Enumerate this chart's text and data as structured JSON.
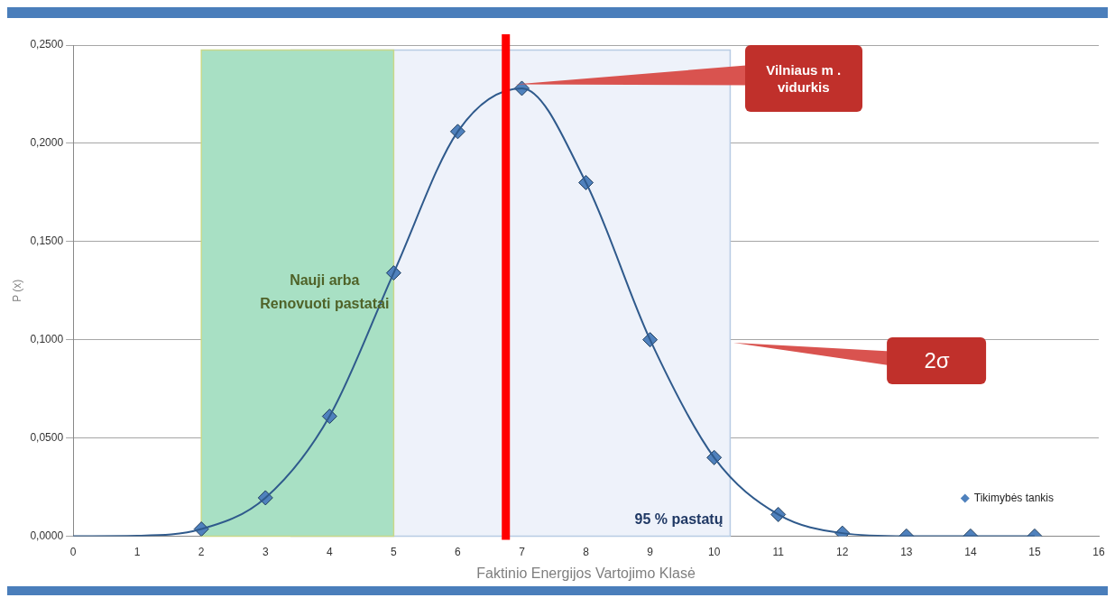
{
  "chart_data": {
    "type": "line",
    "xlabel": "Faktinio Energijos Vartojimo Klasė",
    "ylabel": "P (x)",
    "series": [
      {
        "type": "line",
        "color": "#2f5a8c",
        "x": [
          0,
          1,
          2,
          3,
          4,
          5,
          6,
          7,
          8,
          9,
          10,
          11,
          12,
          13,
          14,
          15
        ],
        "values": [
          0,
          0.0002,
          0.0036,
          0.0195,
          0.061,
          0.134,
          0.206,
          0.228,
          0.18,
          0.1,
          0.04,
          0.011,
          0.0015,
          0,
          0,
          0
        ],
        "marker": "none"
      },
      {
        "type": "scatter",
        "name": "Tikimybės tankis",
        "color": "#4f81bd",
        "x": [
          2,
          3,
          4,
          5,
          6,
          7,
          8,
          9,
          10,
          11,
          12,
          13,
          14,
          15
        ],
        "values": [
          0.0036,
          0.0195,
          0.061,
          0.134,
          0.206,
          0.228,
          0.18,
          0.1,
          0.04,
          0.011,
          0.0015,
          0,
          0,
          0
        ],
        "marker": "diamond"
      }
    ],
    "xlim": [
      0,
      16
    ],
    "xticks": [
      0,
      1,
      2,
      3,
      4,
      5,
      6,
      7,
      8,
      9,
      10,
      11,
      12,
      13,
      14,
      15,
      16
    ],
    "ylim": [
      0,
      0.25
    ],
    "yticks": [
      {
        "value": 0,
        "label": "0,0000"
      },
      {
        "value": 0.05,
        "label": "0,0500"
      },
      {
        "value": 0.1,
        "label": "0,1000"
      },
      {
        "value": 0.15,
        "label": "0,1500"
      },
      {
        "value": 0.2,
        "label": "0,2000"
      },
      {
        "value": 0.25,
        "label": "0,2500"
      }
    ],
    "grid": "y",
    "legend": "bottom right",
    "bands": [
      {
        "axis": "x",
        "from": 3.4,
        "to": 10.25,
        "label": "95 % pastatų",
        "color": "#eef2fa"
      },
      {
        "axis": "x",
        "from": 2,
        "to": 5,
        "label": "Nauji arba Renovuoti pastatai",
        "color": "#a8e0c4"
      }
    ],
    "ref_lines": [
      {
        "axis": "x",
        "value": 6.75,
        "label": "Vilniaus m . vidurkis",
        "color": "#ff0000"
      }
    ],
    "annotations": [
      "2σ"
    ]
  }
}
